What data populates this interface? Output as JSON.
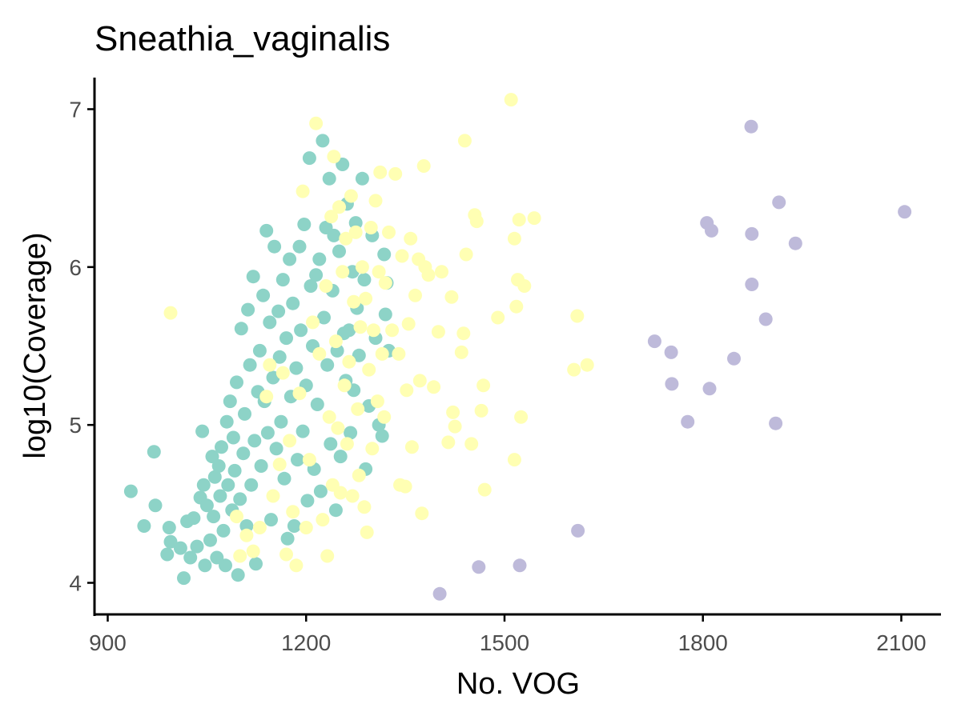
{
  "chart_data": {
    "type": "scatter",
    "title": "Sneathia_vaginalis",
    "xlabel": "No. VOG",
    "ylabel": "log10(Coverage)",
    "xlim": [
      880,
      2160
    ],
    "ylim": [
      3.8,
      7.2
    ],
    "x_ticks": [
      900,
      1200,
      1500,
      1800,
      2100
    ],
    "y_ticks": [
      4,
      5,
      6,
      7
    ],
    "grid": false,
    "legend": "none",
    "series": [
      {
        "color": "#8dd3c7",
        "points": [
          [
            935,
            4.58
          ],
          [
            955,
            4.36
          ],
          [
            970,
            4.83
          ],
          [
            972,
            4.49
          ],
          [
            990,
            4.18
          ],
          [
            993,
            4.35
          ],
          [
            995,
            4.26
          ],
          [
            1010,
            4.22
          ],
          [
            1015,
            4.03
          ],
          [
            1020,
            4.39
          ],
          [
            1025,
            4.16
          ],
          [
            1030,
            4.41
          ],
          [
            1035,
            4.23
          ],
          [
            1040,
            4.54
          ],
          [
            1043,
            4.96
          ],
          [
            1045,
            4.62
          ],
          [
            1047,
            4.11
          ],
          [
            1050,
            4.49
          ],
          [
            1055,
            4.27
          ],
          [
            1058,
            4.8
          ],
          [
            1060,
            4.42
          ],
          [
            1062,
            4.67
          ],
          [
            1065,
            4.16
          ],
          [
            1068,
            4.74
          ],
          [
            1070,
            4.55
          ],
          [
            1072,
            4.86
          ],
          [
            1075,
            4.33
          ],
          [
            1078,
            4.11
          ],
          [
            1080,
            5.02
          ],
          [
            1082,
            4.62
          ],
          [
            1085,
            5.15
          ],
          [
            1088,
            4.46
          ],
          [
            1090,
            4.92
          ],
          [
            1092,
            4.71
          ],
          [
            1095,
            5.27
          ],
          [
            1097,
            4.05
          ],
          [
            1100,
            4.53
          ],
          [
            1102,
            5.61
          ],
          [
            1105,
            4.82
          ],
          [
            1107,
            5.07
          ],
          [
            1110,
            4.36
          ],
          [
            1112,
            5.73
          ],
          [
            1115,
            5.38
          ],
          [
            1117,
            4.62
          ],
          [
            1120,
            5.94
          ],
          [
            1122,
            4.9
          ],
          [
            1124,
            4.12
          ],
          [
            1127,
            5.21
          ],
          [
            1130,
            5.47
          ],
          [
            1132,
            4.74
          ],
          [
            1135,
            5.82
          ],
          [
            1137,
            5.15
          ],
          [
            1140,
            6.23
          ],
          [
            1142,
            4.95
          ],
          [
            1145,
            5.65
          ],
          [
            1147,
            4.4
          ],
          [
            1150,
            5.3
          ],
          [
            1152,
            6.13
          ],
          [
            1155,
            4.85
          ],
          [
            1158,
            5.72
          ],
          [
            1160,
            5.43
          ],
          [
            1162,
            5.02
          ],
          [
            1165,
            5.92
          ],
          [
            1167,
            4.66
          ],
          [
            1170,
            5.55
          ],
          [
            1172,
            4.28
          ],
          [
            1175,
            6.05
          ],
          [
            1177,
            5.18
          ],
          [
            1180,
            5.77
          ],
          [
            1182,
            4.36
          ],
          [
            1185,
            5.36
          ],
          [
            1187,
            4.78
          ],
          [
            1190,
            6.13
          ],
          [
            1192,
            5.6
          ],
          [
            1195,
            4.96
          ],
          [
            1197,
            6.27
          ],
          [
            1200,
            5.25
          ],
          [
            1202,
            4.52
          ],
          [
            1205,
            6.69
          ],
          [
            1207,
            5.88
          ],
          [
            1210,
            5.5
          ],
          [
            1212,
            4.72
          ],
          [
            1215,
            5.95
          ],
          [
            1217,
            5.13
          ],
          [
            1220,
            6.05
          ],
          [
            1222,
            4.58
          ],
          [
            1225,
            6.8
          ],
          [
            1227,
            5.68
          ],
          [
            1230,
            6.25
          ],
          [
            1232,
            5.38
          ],
          [
            1235,
            6.56
          ],
          [
            1237,
            4.88
          ],
          [
            1240,
            5.85
          ],
          [
            1242,
            6.2
          ],
          [
            1245,
            4.46
          ],
          [
            1247,
            5.47
          ],
          [
            1250,
            6.1
          ],
          [
            1252,
            4.8
          ],
          [
            1255,
            6.65
          ],
          [
            1257,
            5.58
          ],
          [
            1260,
            5.28
          ],
          [
            1262,
            6.4
          ],
          [
            1265,
            5.6
          ],
          [
            1267,
            4.95
          ],
          [
            1270,
            5.97
          ],
          [
            1272,
            5.22
          ],
          [
            1275,
            6.28
          ],
          [
            1277,
            5.74
          ],
          [
            1280,
            5.44
          ],
          [
            1285,
            6.56
          ],
          [
            1288,
            5.92
          ],
          [
            1290,
            4.72
          ],
          [
            1295,
            5.12
          ],
          [
            1300,
            6.2
          ],
          [
            1305,
            5.55
          ],
          [
            1310,
            5.0
          ],
          [
            1315,
            4.93
          ],
          [
            1318,
            6.08
          ],
          [
            1320,
            5.7
          ],
          [
            1322,
            5.9
          ],
          [
            1325,
            5.47
          ]
        ]
      },
      {
        "color": "#ffffb3",
        "points": [
          [
            995,
            5.71
          ],
          [
            1095,
            4.42
          ],
          [
            1100,
            4.17
          ],
          [
            1110,
            4.3
          ],
          [
            1120,
            4.2
          ],
          [
            1130,
            4.35
          ],
          [
            1140,
            5.18
          ],
          [
            1145,
            5.38
          ],
          [
            1150,
            4.55
          ],
          [
            1160,
            4.75
          ],
          [
            1165,
            5.33
          ],
          [
            1170,
            4.18
          ],
          [
            1175,
            4.9
          ],
          [
            1180,
            4.45
          ],
          [
            1185,
            4.11
          ],
          [
            1190,
            5.2
          ],
          [
            1195,
            6.48
          ],
          [
            1200,
            4.35
          ],
          [
            1205,
            4.78
          ],
          [
            1210,
            5.65
          ],
          [
            1215,
            6.91
          ],
          [
            1220,
            5.45
          ],
          [
            1225,
            4.4
          ],
          [
            1230,
            5.88
          ],
          [
            1232,
            4.17
          ],
          [
            1235,
            5.05
          ],
          [
            1238,
            6.32
          ],
          [
            1240,
            4.62
          ],
          [
            1242,
            6.7
          ],
          [
            1245,
            5.53
          ],
          [
            1248,
            4.98
          ],
          [
            1250,
            6.38
          ],
          [
            1252,
            4.57
          ],
          [
            1255,
            5.97
          ],
          [
            1258,
            5.25
          ],
          [
            1260,
            6.18
          ],
          [
            1262,
            4.88
          ],
          [
            1265,
            5.4
          ],
          [
            1268,
            6.45
          ],
          [
            1270,
            4.55
          ],
          [
            1272,
            5.78
          ],
          [
            1275,
            6.22
          ],
          [
            1278,
            5.1
          ],
          [
            1280,
            4.68
          ],
          [
            1282,
            5.62
          ],
          [
            1285,
            6.0
          ],
          [
            1288,
            4.48
          ],
          [
            1290,
            5.8
          ],
          [
            1292,
            4.32
          ],
          [
            1295,
            5.35
          ],
          [
            1298,
            6.25
          ],
          [
            1300,
            4.85
          ],
          [
            1302,
            5.6
          ],
          [
            1305,
            6.42
          ],
          [
            1308,
            5.15
          ],
          [
            1310,
            5.97
          ],
          [
            1312,
            6.6
          ],
          [
            1315,
            5.45
          ],
          [
            1318,
            5.05
          ],
          [
            1320,
            5.9
          ],
          [
            1325,
            6.22
          ],
          [
            1330,
            5.6
          ],
          [
            1335,
            6.59
          ],
          [
            1340,
            5.45
          ],
          [
            1342,
            4.62
          ],
          [
            1345,
            6.07
          ],
          [
            1350,
            4.61
          ],
          [
            1352,
            5.22
          ],
          [
            1355,
            5.64
          ],
          [
            1358,
            6.18
          ],
          [
            1360,
            4.86
          ],
          [
            1365,
            5.82
          ],
          [
            1370,
            6.05
          ],
          [
            1372,
            5.28
          ],
          [
            1375,
            4.44
          ],
          [
            1378,
            6.64
          ],
          [
            1380,
            6.0
          ],
          [
            1385,
            5.95
          ],
          [
            1393,
            5.24
          ],
          [
            1400,
            5.59
          ],
          [
            1405,
            5.97
          ],
          [
            1415,
            4.89
          ],
          [
            1420,
            5.81
          ],
          [
            1422,
            5.08
          ],
          [
            1425,
            4.99
          ],
          [
            1435,
            5.46
          ],
          [
            1438,
            5.58
          ],
          [
            1440,
            6.8
          ],
          [
            1442,
            6.08
          ],
          [
            1450,
            4.88
          ],
          [
            1455,
            6.33
          ],
          [
            1458,
            6.29
          ],
          [
            1465,
            5.09
          ],
          [
            1468,
            5.25
          ],
          [
            1470,
            4.59
          ],
          [
            1490,
            5.68
          ],
          [
            1510,
            7.06
          ],
          [
            1515,
            6.18
          ],
          [
            1518,
            5.75
          ],
          [
            1520,
            5.92
          ],
          [
            1522,
            6.3
          ],
          [
            1525,
            5.05
          ],
          [
            1530,
            5.88
          ],
          [
            1545,
            6.31
          ],
          [
            1605,
            5.35
          ],
          [
            1610,
            5.69
          ],
          [
            1625,
            5.38
          ],
          [
            1515,
            4.78
          ]
        ]
      },
      {
        "color": "#bebada",
        "points": [
          [
            1402,
            3.93
          ],
          [
            1461,
            4.1
          ],
          [
            1523,
            4.11
          ],
          [
            1611,
            4.33
          ],
          [
            1727,
            5.53
          ],
          [
            1752,
            5.46
          ],
          [
            1753,
            5.26
          ],
          [
            1777,
            5.02
          ],
          [
            1806,
            6.28
          ],
          [
            1810,
            5.23
          ],
          [
            1813,
            6.23
          ],
          [
            1847,
            5.42
          ],
          [
            1873,
            6.89
          ],
          [
            1874,
            6.21
          ],
          [
            1874,
            5.89
          ],
          [
            1895,
            5.67
          ],
          [
            1910,
            5.01
          ],
          [
            1915,
            6.41
          ],
          [
            1940,
            6.15
          ],
          [
            2105,
            6.35
          ]
        ]
      }
    ]
  }
}
